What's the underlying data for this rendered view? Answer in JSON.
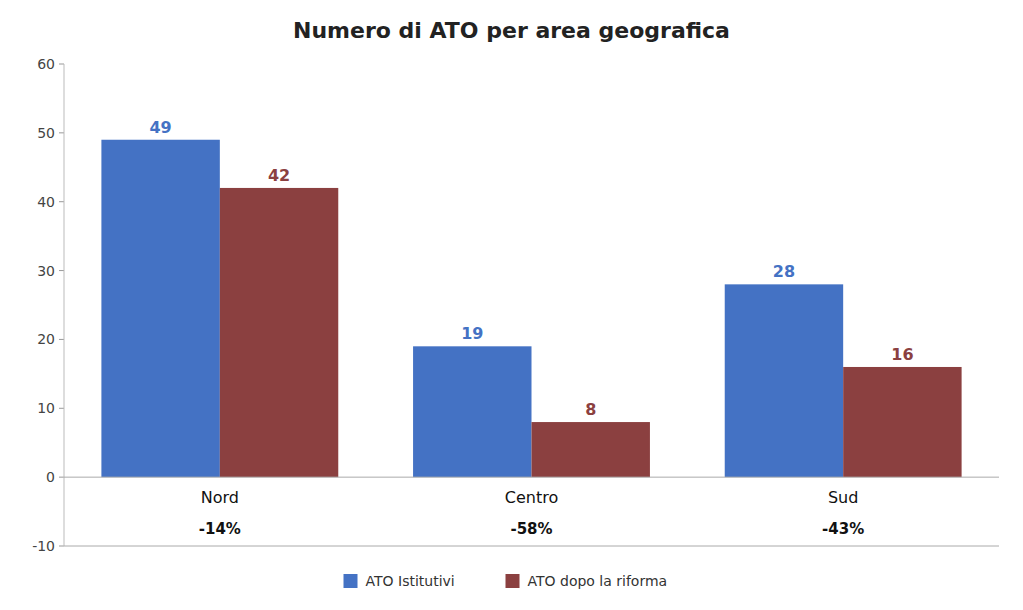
{
  "chart_data": {
    "type": "bar",
    "title": "Numero di ATO per area geografica",
    "categories": [
      "Nord",
      "Centro",
      "Sud"
    ],
    "annotations": [
      "-14%",
      "-58%",
      "-43%"
    ],
    "series": [
      {
        "name": "ATO Istitutivi",
        "color": "#4472C4",
        "values": [
          49,
          19,
          28
        ]
      },
      {
        "name": "ATO dopo la riforma",
        "color": "#8B4040",
        "values": [
          42,
          8,
          16
        ]
      }
    ],
    "ylim": [
      -10,
      60
    ],
    "yticks": [
      -10,
      0,
      10,
      20,
      30,
      40,
      50,
      60
    ],
    "grid": false,
    "legend": "bottom",
    "data_labels": true
  }
}
